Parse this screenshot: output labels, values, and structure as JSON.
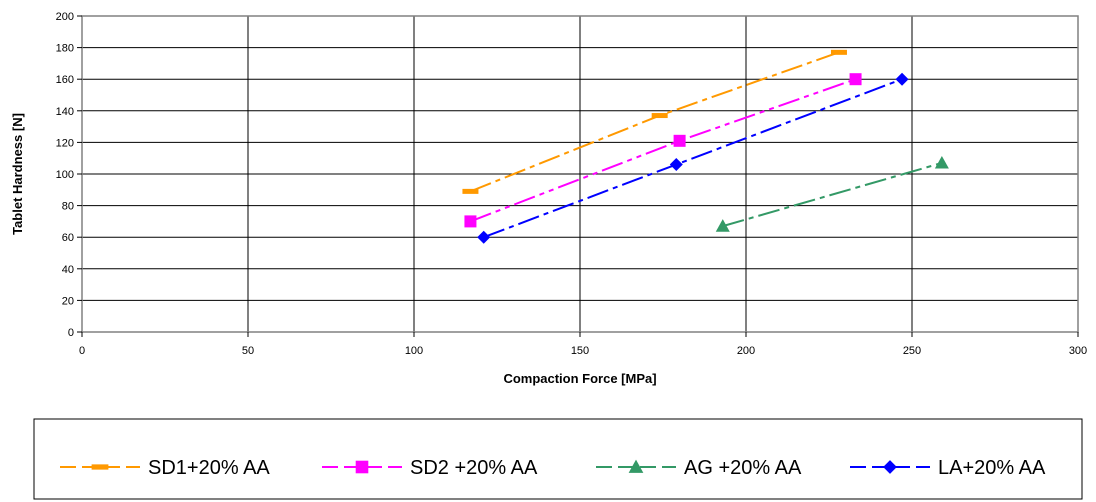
{
  "chart_data": {
    "type": "line",
    "xlabel": "Compaction Force [MPa]",
    "ylabel": "Tablet Hardness [N]",
    "xlim": [
      0,
      300
    ],
    "ylim": [
      0,
      200
    ],
    "x_ticks": [
      0,
      50,
      100,
      150,
      200,
      250,
      300
    ],
    "y_ticks": [
      0,
      20,
      40,
      60,
      80,
      100,
      120,
      140,
      160,
      180,
      200
    ],
    "grid": true,
    "legend_position": "bottom",
    "series": [
      {
        "name": "SD1+20% AA",
        "color": "#FF9900",
        "marker": "dash",
        "dash": "22,5,5,5",
        "points": [
          [
            117,
            89
          ],
          [
            174,
            137
          ],
          [
            228,
            177
          ]
        ]
      },
      {
        "name": "SD2 +20% AA",
        "color": "#FF00FF",
        "marker": "square",
        "dash": "22,5,5,5,5,5",
        "points": [
          [
            117,
            70
          ],
          [
            180,
            121
          ],
          [
            233,
            160
          ]
        ]
      },
      {
        "name": "AG +20% AA",
        "color": "#339966",
        "marker": "triangle",
        "dash": "22,5,5,5",
        "points": [
          [
            193,
            67
          ],
          [
            259,
            107
          ]
        ]
      },
      {
        "name": "LA+20% AA",
        "color": "#0000FF",
        "marker": "diamond",
        "dash": "22,5,5,5",
        "points": [
          [
            121,
            60
          ],
          [
            179,
            106
          ],
          [
            247,
            160
          ]
        ]
      }
    ]
  }
}
